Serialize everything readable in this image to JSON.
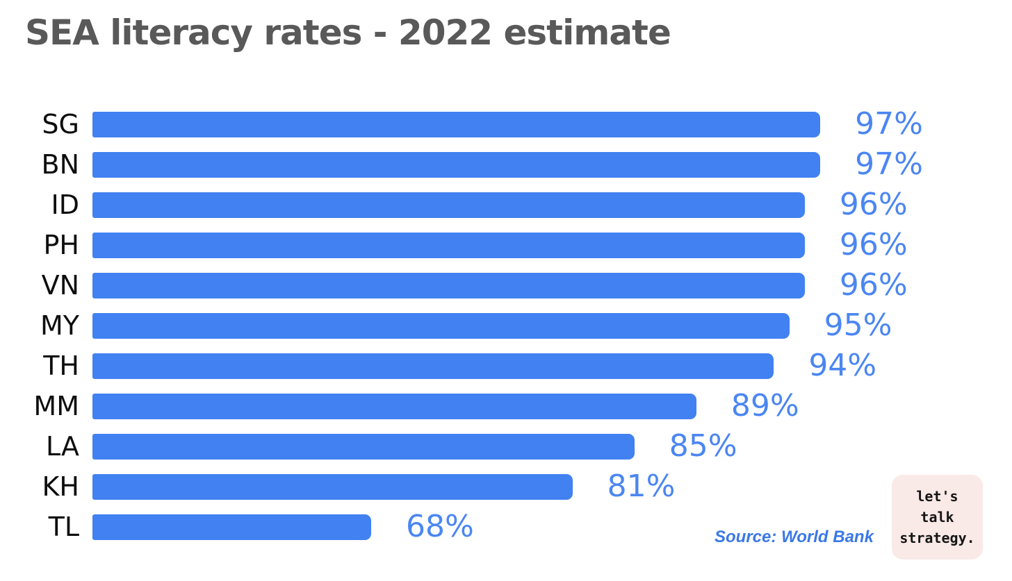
{
  "title": "SEA literacy rates - 2022 estimate",
  "source": "Source: World Bank",
  "badge": {
    "lines": [
      "let's",
      "talk",
      "strategy."
    ],
    "bg_color": "#f9e9e7"
  },
  "colors": {
    "bar": "#4181f1",
    "value_label": "#4b86f2",
    "title": "#595959",
    "category_label": "#0d0d0d",
    "source": "#3b78e7",
    "background": "#ffffff"
  },
  "chart_data": {
    "type": "bar",
    "orientation": "horizontal",
    "title": "SEA literacy rates - 2022 estimate",
    "categories": [
      "SG",
      "BN",
      "ID",
      "PH",
      "VN",
      "MY",
      "TH",
      "MM",
      "LA",
      "KH",
      "TL"
    ],
    "values": [
      97,
      97,
      96,
      96,
      96,
      95,
      94,
      89,
      85,
      81,
      68
    ],
    "value_labels": [
      "97%",
      "97%",
      "96%",
      "96%",
      "96%",
      "95%",
      "94%",
      "89%",
      "85%",
      "81%",
      "68%"
    ],
    "unit": "%",
    "xlabel": "",
    "ylabel": "",
    "xlim": [
      50,
      100
    ],
    "grid": false,
    "legend": false,
    "value_labels_position": "right-of-bar",
    "annotations": [
      "Source: World Bank",
      "let's talk strategy."
    ]
  }
}
